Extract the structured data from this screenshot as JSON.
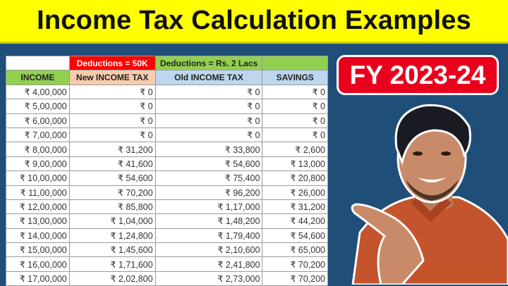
{
  "title": "Income Tax Calculation Examples",
  "badge": "FY 2023-24",
  "table": {
    "group_headers": [
      "",
      "Deductions = 50K",
      "Deductions = Rs. 2 Lacs",
      ""
    ],
    "columns": [
      "INCOME",
      "New INCOME TAX",
      "Old INCOME TAX",
      "SAVINGS"
    ],
    "rows": [
      [
        "₹ 4,00,000",
        "₹ 0",
        "₹ 0",
        "₹ 0"
      ],
      [
        "₹ 5,00,000",
        "₹ 0",
        "₹ 0",
        "₹ 0"
      ],
      [
        "₹ 6,00,000",
        "₹ 0",
        "₹ 0",
        "₹ 0"
      ],
      [
        "₹ 7,00,000",
        "₹ 0",
        "₹ 0",
        "₹ 0"
      ],
      [
        "₹ 8,00,000",
        "₹ 31,200",
        "₹ 33,800",
        "₹ 2,600"
      ],
      [
        "₹ 9,00,000",
        "₹ 41,600",
        "₹ 54,600",
        "₹ 13,000"
      ],
      [
        "₹ 10,00,000",
        "₹ 54,600",
        "₹ 75,400",
        "₹ 20,800"
      ],
      [
        "₹ 11,00,000",
        "₹ 70,200",
        "₹ 96,200",
        "₹ 26,000"
      ],
      [
        "₹ 12,00,000",
        "₹ 85,800",
        "₹ 1,17,000",
        "₹ 31,200"
      ],
      [
        "₹ 13,00,000",
        "₹ 1,04,000",
        "₹ 1,48,200",
        "₹ 44,200"
      ],
      [
        "₹ 14,00,000",
        "₹ 1,24,800",
        "₹ 1,79,400",
        "₹ 54,600"
      ],
      [
        "₹ 15,00,000",
        "₹ 1,45,600",
        "₹ 2,10,600",
        "₹ 65,000"
      ],
      [
        "₹ 16,00,000",
        "₹ 1,71,600",
        "₹ 2,41,800",
        "₹ 70,200"
      ],
      [
        "₹ 17,00,000",
        "₹ 2,02,800",
        "₹ 2,73,000",
        "₹ 70,200"
      ]
    ]
  },
  "colors": {
    "title_bg": "#ffff00",
    "background": "#1f4e79",
    "badge": "#e8001c",
    "deductions_new": "#ff0000",
    "deductions_old": "#92d050"
  }
}
